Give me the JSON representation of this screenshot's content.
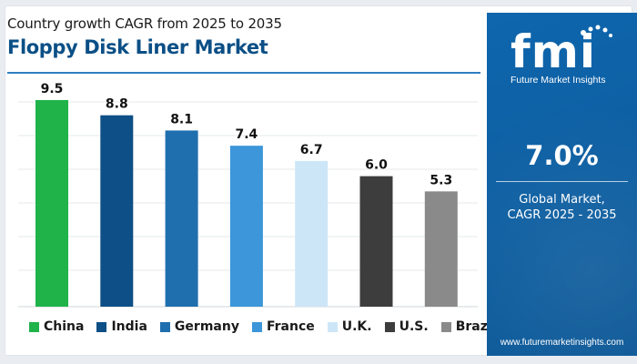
{
  "header": {
    "subtitle": "Country growth CAGR from 2025 to 2035",
    "title": "Floppy Disk Liner Market"
  },
  "sidebar": {
    "logo_text": "fmi",
    "logo_tagline": "Future Market Insights",
    "cagr_value": "7.0%",
    "cagr_line1": "Global Market,",
    "cagr_line2": "CAGR 2025 - 2035",
    "url": "www.futuremarketinsights.com",
    "background_color": "#0d5fa3"
  },
  "chart_data": {
    "type": "bar",
    "title": "Floppy Disk Liner Market",
    "subtitle": "Country growth CAGR from 2025 to 2035",
    "categories": [
      "China",
      "India",
      "Germany",
      "France",
      "U.K.",
      "U.S.",
      "Brazil"
    ],
    "values": [
      9.5,
      8.8,
      8.1,
      7.4,
      6.7,
      6.0,
      5.3
    ],
    "data_labels": [
      "9.5",
      "8.8",
      "8.1",
      "7.4",
      "6.7",
      "6.0",
      "5.3"
    ],
    "colors": [
      "#1fb34a",
      "#0d4f86",
      "#1f6fae",
      "#3c96d9",
      "#cde6f7",
      "#3d3d3d",
      "#8a8a8a"
    ],
    "ylim": [
      0,
      10
    ],
    "grid": true,
    "legend_position": "bottom",
    "xlabel": "",
    "ylabel": ""
  }
}
